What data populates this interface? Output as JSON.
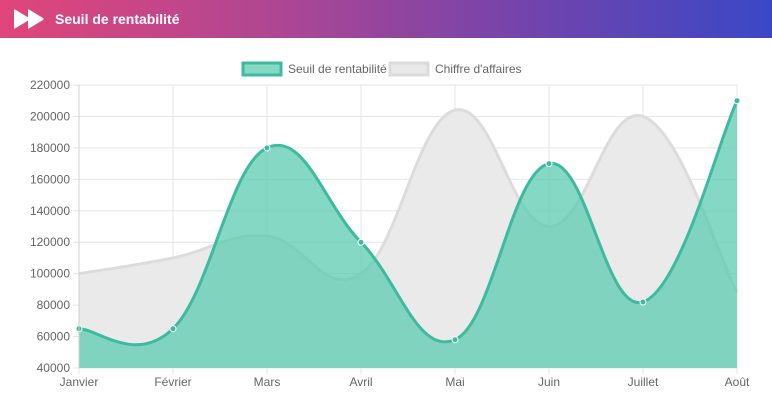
{
  "header": {
    "title": "Seuil de rentabilité",
    "logo_icon": "double-play-logo",
    "gradient_start": "#e0467a",
    "gradient_end": "#3a48c6"
  },
  "chart_data": {
    "type": "area",
    "categories": [
      "Janvier",
      "Février",
      "Mars",
      "Avril",
      "Mai",
      "Juin",
      "Juillet",
      "Août"
    ],
    "series": [
      {
        "name": "Seuil de rentabilité",
        "values": [
          65000,
          65000,
          180000,
          120000,
          58000,
          170000,
          82000,
          210000
        ],
        "border_color": "#3dbb9e",
        "fill_color": "#5ccbb0",
        "points_shown": true
      },
      {
        "name": "Chiffre d'affaires",
        "values": [
          100000,
          110000,
          124000,
          100000,
          204000,
          130000,
          200000,
          88000
        ],
        "border_color": "#dcdcdc",
        "fill_color": "#e9e9e9",
        "points_shown": false
      }
    ],
    "y_ticks": [
      "220000",
      "200000",
      "180000",
      "160000",
      "140000",
      "120000",
      "100000",
      "80000",
      "60000",
      "40000"
    ],
    "ylim": [
      40000,
      220000
    ],
    "y_step": 20000,
    "grid": true,
    "legend_position": "top-center",
    "curve": "smooth"
  }
}
